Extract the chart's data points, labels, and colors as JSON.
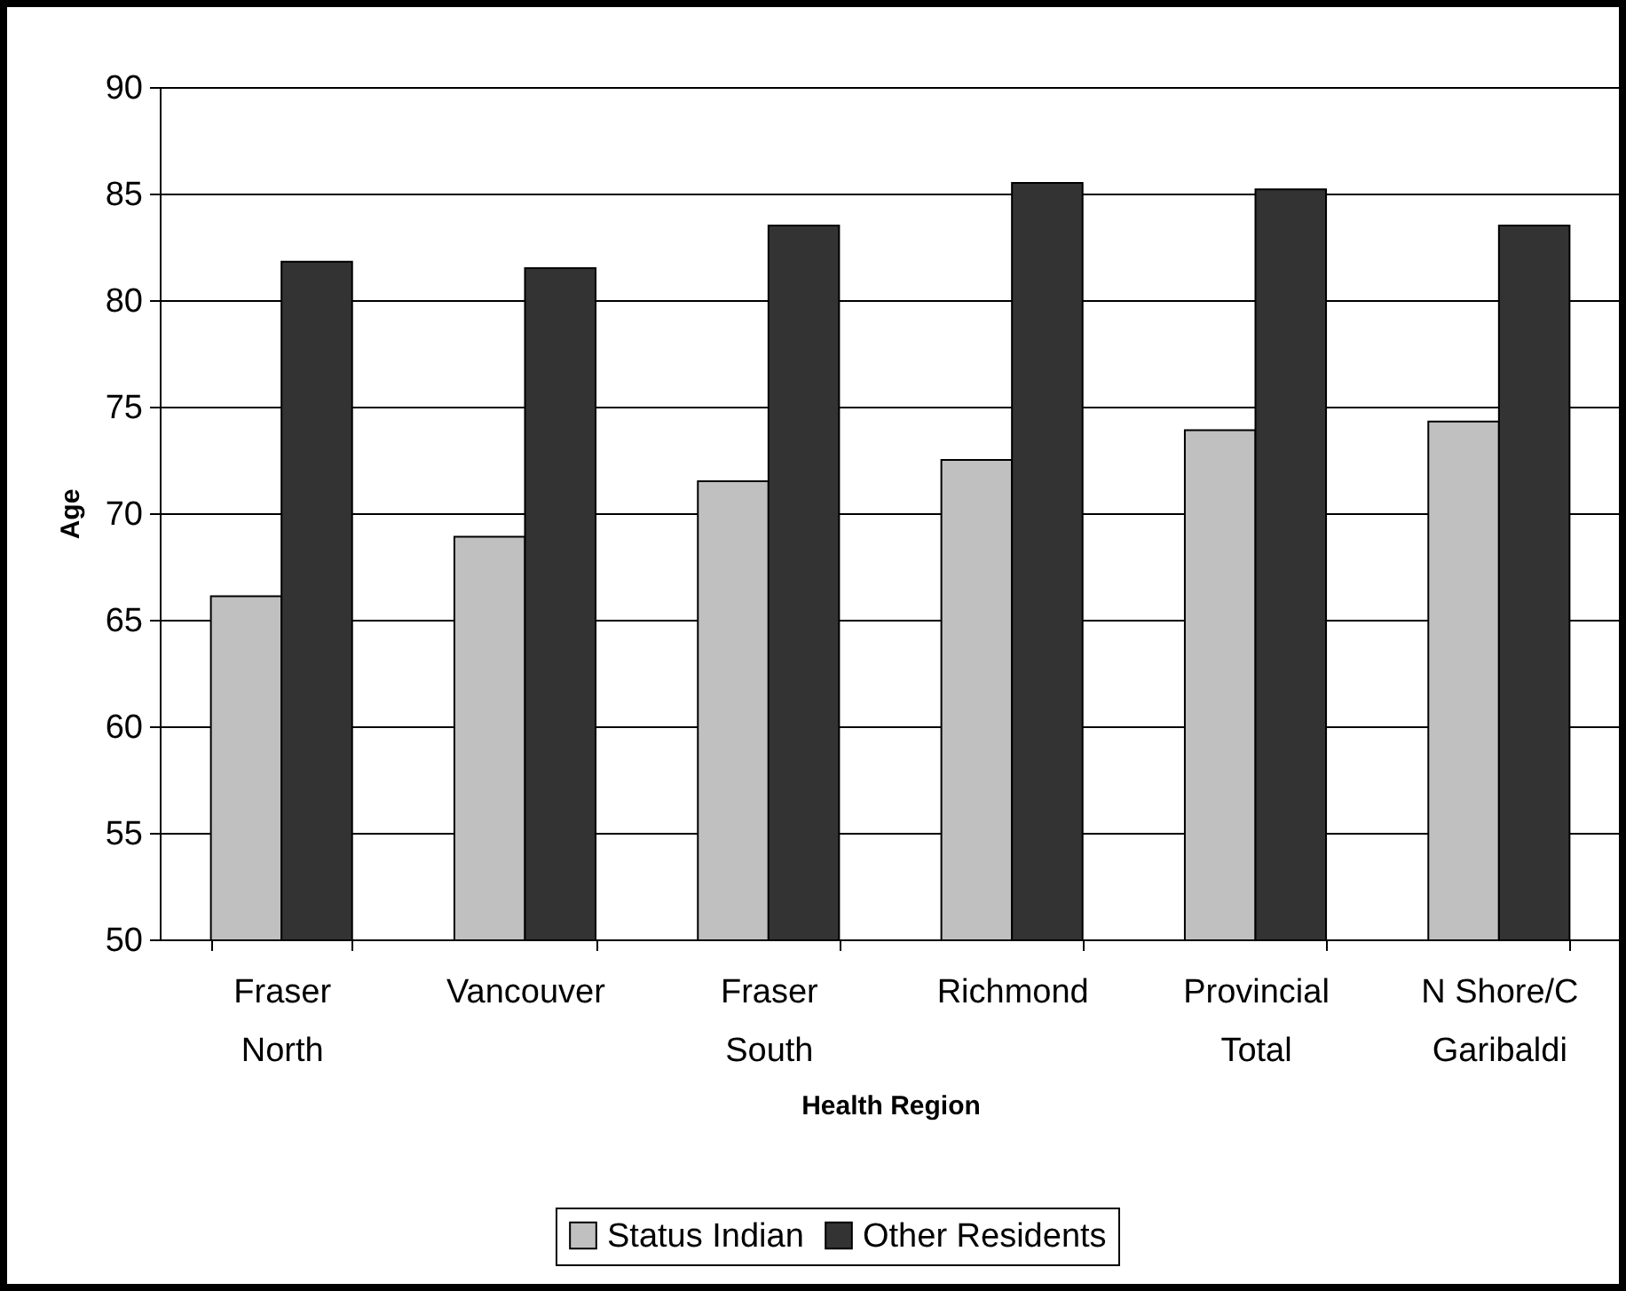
{
  "chart_data": {
    "type": "bar",
    "xlabel": "Health Region",
    "ylabel": "Age",
    "categories": [
      "Fraser North",
      "Vancouver",
      "Fraser South",
      "Richmond",
      "Provincial Total",
      "N Shore/C Garibaldi"
    ],
    "series": [
      {
        "name": "Status Indian",
        "color": "#c0c0c0",
        "values": [
          66.1,
          68.9,
          71.5,
          72.5,
          73.9,
          74.3
        ]
      },
      {
        "name": "Other Residents",
        "color": "#333333",
        "values": [
          81.8,
          81.5,
          83.5,
          85.5,
          85.2,
          83.5
        ]
      }
    ],
    "ylim": [
      50,
      90
    ],
    "yticks": [
      50,
      55,
      60,
      65,
      70,
      75,
      80,
      85,
      90
    ],
    "grid": "y",
    "legend": "bottom"
  }
}
